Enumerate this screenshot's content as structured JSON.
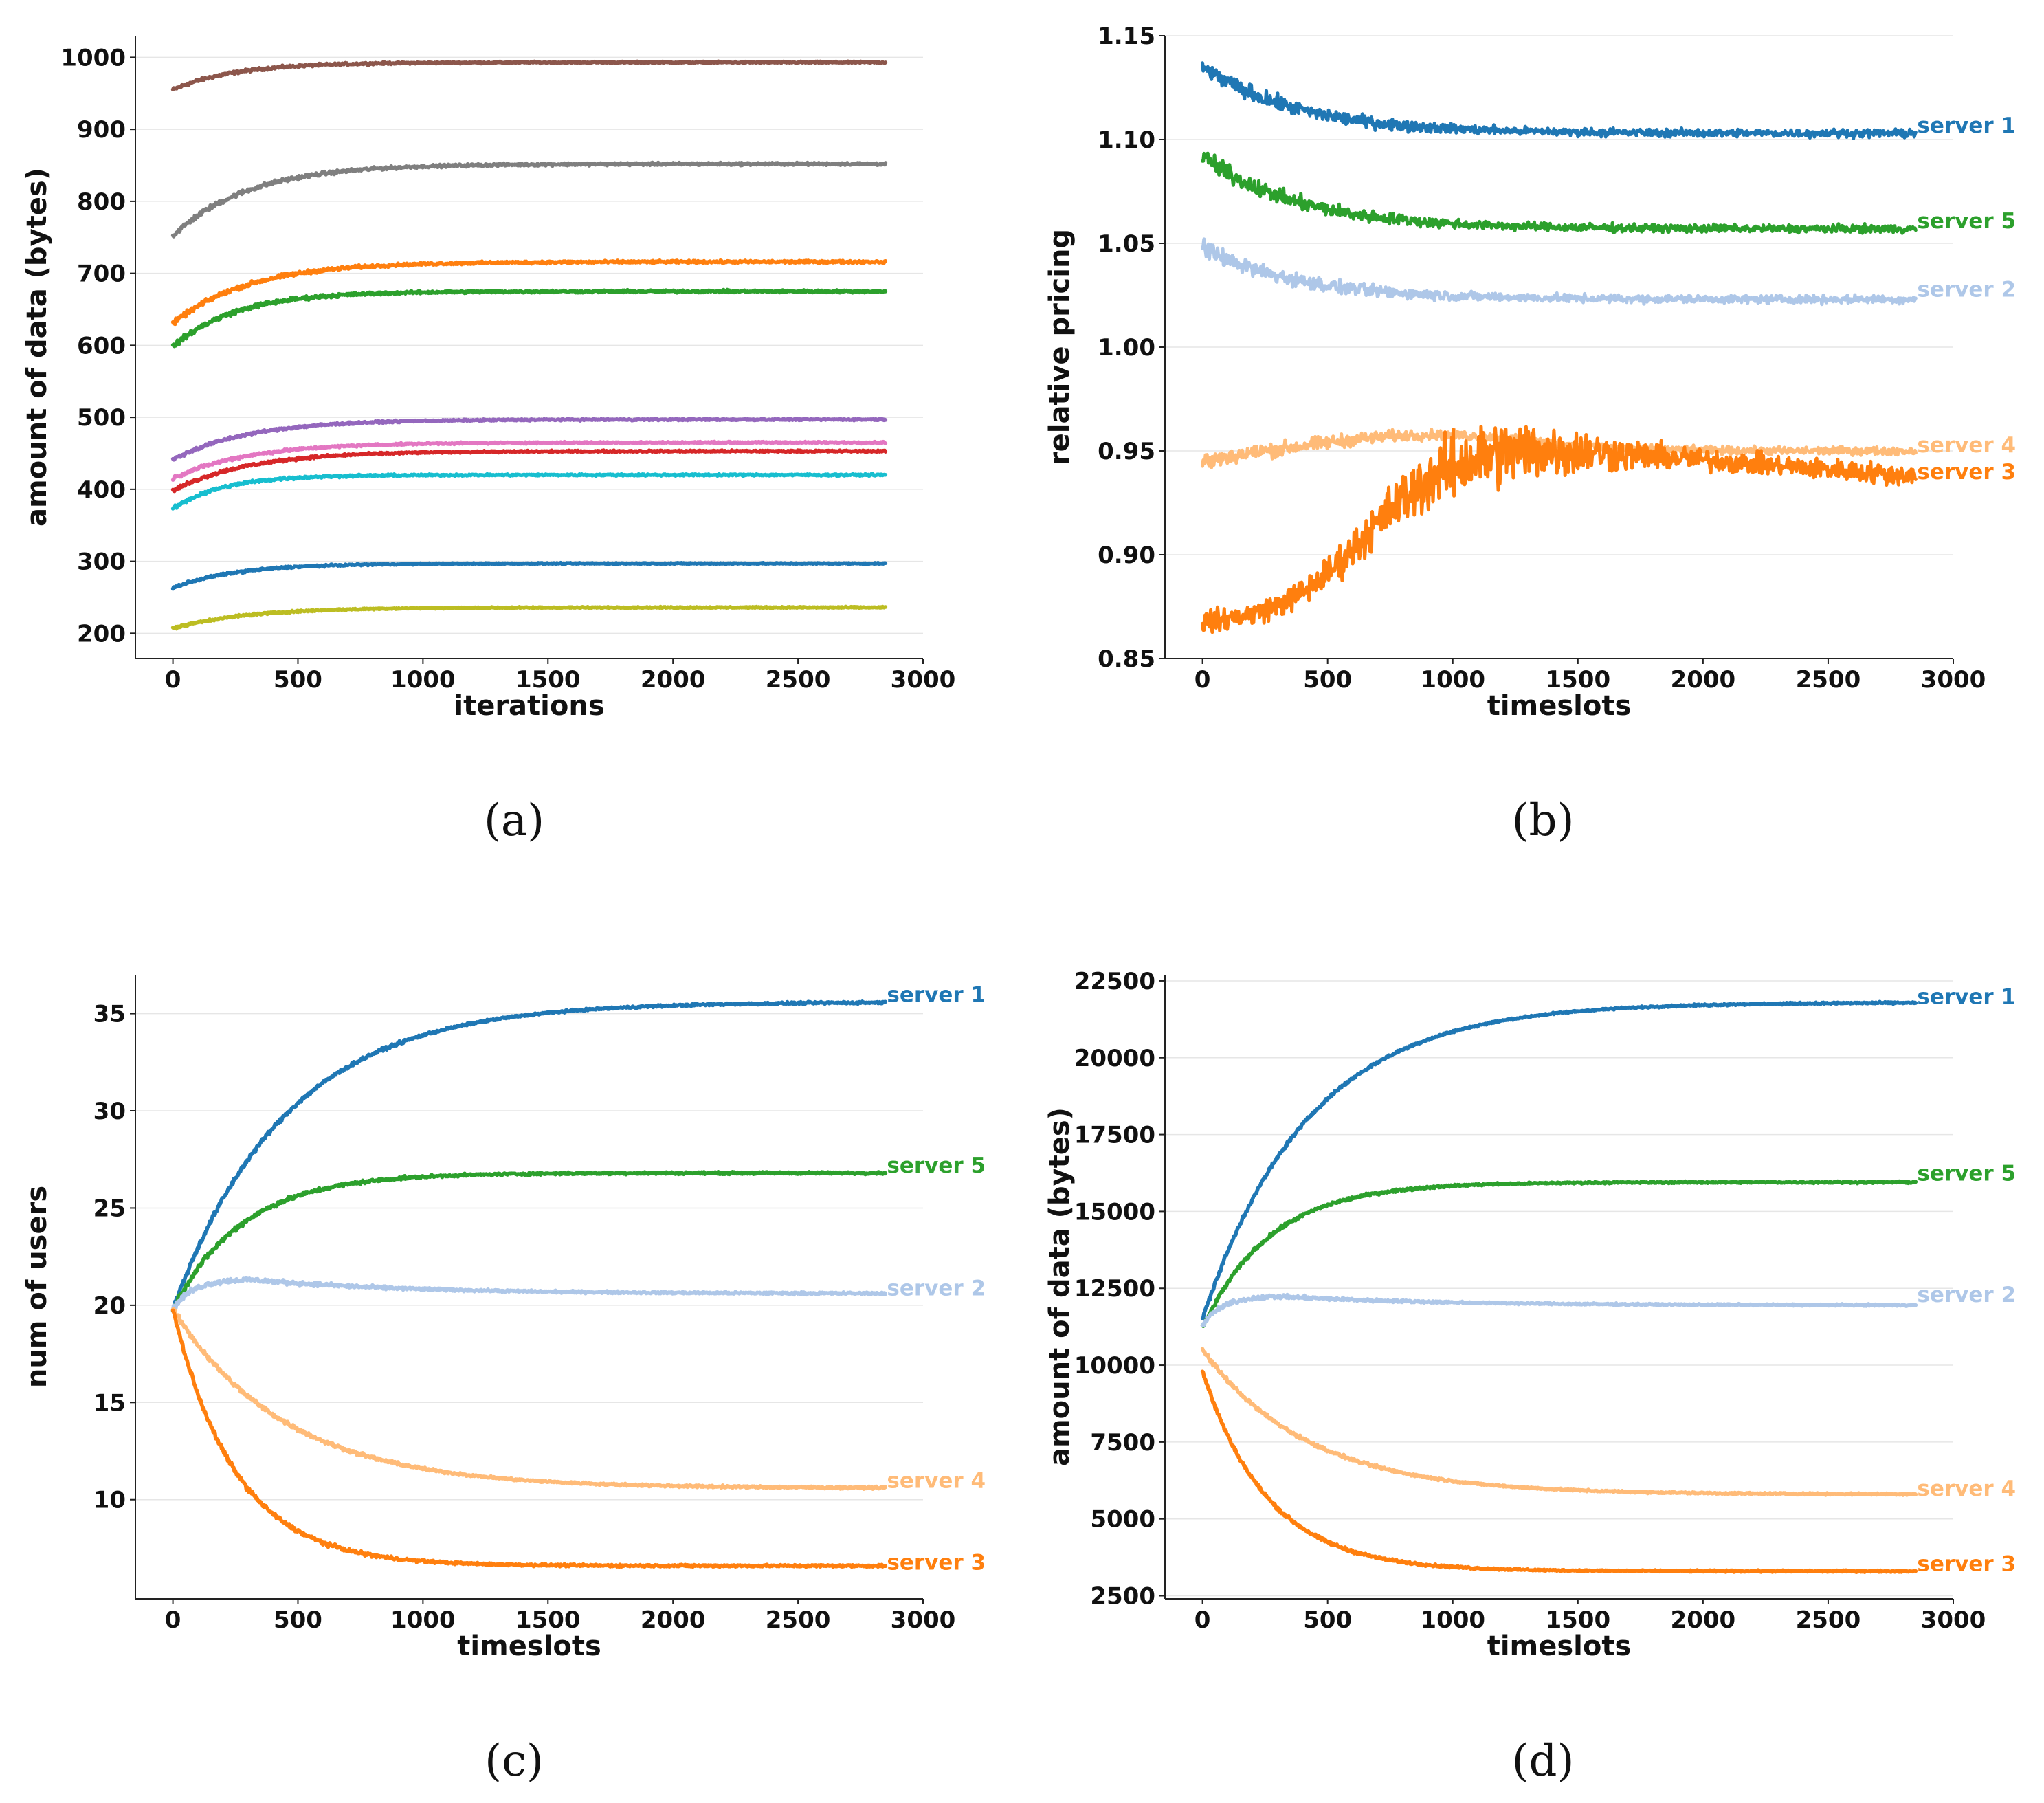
{
  "chart_data": [
    {
      "id": "a",
      "type": "line",
      "caption": "(a)",
      "xlabel": "iterations",
      "ylabel": "amount of data (bytes)",
      "xlim": [
        -150,
        3000
      ],
      "ylim": [
        165,
        1030
      ],
      "xticks": [
        0,
        500,
        1000,
        1500,
        2000,
        2500,
        3000
      ],
      "yticks": [
        200,
        300,
        400,
        500,
        600,
        700,
        800,
        900,
        1000
      ],
      "grid": true,
      "x_end": 2850,
      "series": [
        {
          "name": "brown",
          "color": "#8c564b",
          "start": 955,
          "end": 993,
          "tau": 250,
          "noise": 2.0
        },
        {
          "name": "gray",
          "color": "#7f7f7f",
          "start": 752,
          "end": 852,
          "tau": 300,
          "noise": 3.0
        },
        {
          "name": "orange",
          "color": "#ff7f0e",
          "start": 630,
          "end": 716,
          "tau": 300,
          "noise": 3.0
        },
        {
          "name": "green",
          "color": "#2ca02c",
          "start": 598,
          "end": 675,
          "tau": 250,
          "noise": 3.0
        },
        {
          "name": "purple",
          "color": "#9467bd",
          "start": 441,
          "end": 497,
          "tau": 300,
          "noise": 2.0
        },
        {
          "name": "pink",
          "color": "#e377c2",
          "start": 415,
          "end": 465,
          "tau": 300,
          "noise": 2.0
        },
        {
          "name": "red",
          "color": "#d62728",
          "start": 398,
          "end": 453,
          "tau": 300,
          "noise": 2.0
        },
        {
          "name": "cyan",
          "color": "#17becf",
          "start": 373,
          "end": 420,
          "tau": 200,
          "noise": 2.0
        },
        {
          "name": "blue",
          "color": "#1f77b4",
          "start": 263,
          "end": 297,
          "tau": 250,
          "noise": 1.5
        },
        {
          "name": "olive",
          "color": "#bcbd22",
          "start": 207,
          "end": 236,
          "tau": 300,
          "noise": 1.5
        }
      ]
    },
    {
      "id": "b",
      "type": "line",
      "caption": "(b)",
      "xlabel": "timeslots",
      "ylabel": "relative pricing",
      "xlim": [
        -150,
        3000
      ],
      "ylim": [
        0.85,
        1.15
      ],
      "xticks": [
        0,
        500,
        1000,
        1500,
        2000,
        2500,
        3000
      ],
      "yticks": [
        0.85,
        0.9,
        0.95,
        1.0,
        1.05,
        1.1,
        1.15
      ],
      "ytick_labels": [
        "0.85",
        "0.90",
        "0.95",
        "1.00",
        "1.05",
        "1.10",
        "1.15"
      ],
      "grid": true,
      "x_end": 2850,
      "series": [
        {
          "name": "server 1",
          "color": "#1f77b4",
          "start": 1.135,
          "end": 1.103,
          "tau": 380,
          "noise": 0.0035,
          "label_value": 1.107
        },
        {
          "name": "server 5",
          "color": "#2ca02c",
          "start": 1.092,
          "end": 1.057,
          "tau": 380,
          "noise": 0.0035,
          "label_value": 1.061
        },
        {
          "name": "server 2",
          "color": "#aec7e8",
          "start": 1.048,
          "end": 1.023,
          "tau": 380,
          "noise": 0.0035,
          "label_value": 1.028
        },
        {
          "name": "server 4",
          "color": "#ffbb78",
          "start": 0.944,
          "end": 0.95,
          "tau": 300,
          "noise": 0.0035,
          "label_value": 0.953
        },
        {
          "name": "server 3",
          "color": "#ff7f0e",
          "start": 0.866,
          "end": 0.938,
          "tau": 0,
          "noise": 0.006,
          "label_value": 0.94
        }
      ]
    },
    {
      "id": "c",
      "type": "line",
      "caption": "(c)",
      "xlabel": "timeslots",
      "ylabel": "num of users",
      "xlim": [
        -150,
        3000
      ],
      "ylim": [
        4.9,
        37.0
      ],
      "xticks": [
        0,
        500,
        1000,
        1500,
        2000,
        2500,
        3000
      ],
      "yticks": [
        10,
        15,
        20,
        25,
        30,
        35
      ],
      "grid": true,
      "x_end": 2850,
      "series": [
        {
          "name": "server 1",
          "color": "#1f77b4",
          "start": 19.8,
          "end": 35.6,
          "tau": 450,
          "noise": 0.12,
          "label_value": 36.0
        },
        {
          "name": "server 5",
          "color": "#2ca02c",
          "start": 19.8,
          "end": 26.8,
          "tau": 280,
          "noise": 0.12,
          "label_value": 27.2
        },
        {
          "name": "server 2",
          "color": "#aec7e8",
          "start": 19.8,
          "end": 20.6,
          "tau": 0,
          "noise": 0.12,
          "label_value": 20.9
        },
        {
          "name": "server 4",
          "color": "#ffbb78",
          "start": 19.8,
          "end": 10.6,
          "tau": 450,
          "noise": 0.12,
          "label_value": 11.0
        },
        {
          "name": "server 3",
          "color": "#ff7f0e",
          "start": 19.8,
          "end": 6.6,
          "tau": 250,
          "noise": 0.12,
          "label_value": 6.8
        }
      ]
    },
    {
      "id": "d",
      "type": "line",
      "caption": "(d)",
      "xlabel": "timeslots",
      "ylabel": "amount of data (bytes)",
      "xlim": [
        -150,
        3000
      ],
      "ylim": [
        2400,
        22700
      ],
      "xticks": [
        0,
        500,
        1000,
        1500,
        2000,
        2500,
        3000
      ],
      "yticks": [
        2500,
        5000,
        7500,
        10000,
        12500,
        15000,
        17500,
        20000,
        22500
      ],
      "grid": true,
      "x_end": 2850,
      "series": [
        {
          "name": "server 1",
          "color": "#1f77b4",
          "start": 11500,
          "end": 21800,
          "tau": 420,
          "noise": 60,
          "label_value": 22000
        },
        {
          "name": "server 5",
          "color": "#2ca02c",
          "start": 11200,
          "end": 15950,
          "tau": 270,
          "noise": 60,
          "label_value": 16250
        },
        {
          "name": "server 2",
          "color": "#aec7e8",
          "start": 11300,
          "end": 11950,
          "tau": 0,
          "noise": 60,
          "label_value": 12300
        },
        {
          "name": "server 4",
          "color": "#ffbb78",
          "start": 10500,
          "end": 5800,
          "tau": 420,
          "noise": 60,
          "label_value": 6000
        },
        {
          "name": "server 3",
          "color": "#ff7f0e",
          "start": 9800,
          "end": 3300,
          "tau": 260,
          "noise": 60,
          "label_value": 3550
        }
      ]
    }
  ]
}
